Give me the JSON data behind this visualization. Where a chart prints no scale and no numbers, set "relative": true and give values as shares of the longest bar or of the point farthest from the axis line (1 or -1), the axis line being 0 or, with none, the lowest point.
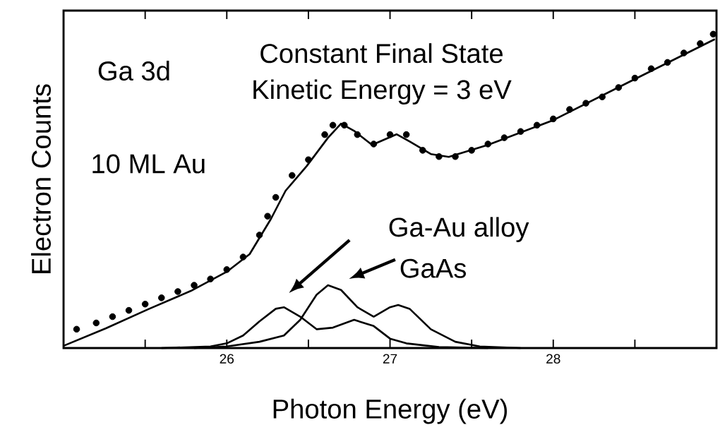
{
  "chart_data": {
    "type": "line",
    "xlabel": "Photon Energy (eV)",
    "ylabel": "Electron Counts",
    "relative": true,
    "xlim": [
      25,
      29
    ],
    "xticks": [
      {
        "value": 25.5,
        "label": null
      },
      26,
      {
        "value": 26.5,
        "label": null
      },
      27,
      {
        "value": 27.5,
        "label": null
      },
      28,
      {
        "value": 28.5,
        "label": null
      }
    ],
    "line_style": "solid",
    "annotations": [
      "Ga 3d",
      "Constant Final State",
      "Kinetic Energy = 3 eV",
      "10 ML Au",
      "Ga-Au alloy",
      "GaAs"
    ],
    "series": [
      {
        "type": "scatter",
        "marker": "circle",
        "color": "#000000",
        "x": [
          25.08,
          25.2,
          25.3,
          25.4,
          25.5,
          25.6,
          25.7,
          25.8,
          25.9,
          26.0,
          26.1,
          26.2,
          26.25,
          26.3,
          26.4,
          26.5,
          26.6,
          26.65,
          26.72,
          26.8,
          26.9,
          27.0,
          27.1,
          27.2,
          27.3,
          27.4,
          27.5,
          27.6,
          27.7,
          27.8,
          27.9,
          28.0,
          28.1,
          28.2,
          28.3,
          28.4,
          28.5,
          28.6,
          28.7,
          28.8,
          28.9,
          28.98
        ],
        "values": [
          0.06,
          0.08,
          0.1,
          0.12,
          0.14,
          0.16,
          0.18,
          0.2,
          0.22,
          0.25,
          0.29,
          0.36,
          0.42,
          0.48,
          0.55,
          0.6,
          0.68,
          0.71,
          0.71,
          0.68,
          0.65,
          0.68,
          0.68,
          0.63,
          0.61,
          0.61,
          0.63,
          0.65,
          0.67,
          0.69,
          0.71,
          0.73,
          0.76,
          0.78,
          0.8,
          0.83,
          0.86,
          0.89,
          0.91,
          0.94,
          0.97,
          1.0
        ]
      },
      {
        "marker": "none",
        "color": "#000000",
        "x": [
          25.0,
          25.26,
          25.52,
          25.78,
          26.0,
          26.14,
          26.27,
          26.36,
          26.49,
          26.62,
          26.7,
          26.78,
          26.89,
          27.04,
          27.12,
          27.25,
          27.36,
          27.6,
          28.0,
          28.47,
          28.99
        ],
        "values": [
          0.007,
          0.063,
          0.124,
          0.182,
          0.243,
          0.299,
          0.411,
          0.501,
          0.58,
          0.67,
          0.715,
          0.692,
          0.647,
          0.681,
          0.658,
          0.618,
          0.609,
          0.647,
          0.726,
          0.849,
          0.984
        ]
      },
      {
        "marker": "none",
        "color": "#000000",
        "x": [
          25.6,
          25.9,
          26.0,
          26.1,
          26.2,
          26.3,
          26.35,
          26.45,
          26.55,
          26.65,
          26.78,
          26.9,
          27.0,
          27.1,
          27.3,
          27.6
        ],
        "values": [
          0,
          0.005,
          0.015,
          0.04,
          0.085,
          0.125,
          0.13,
          0.1,
          0.06,
          0.065,
          0.09,
          0.07,
          0.03,
          0.015,
          0.003,
          0
        ]
      },
      {
        "marker": "none",
        "color": "#000000",
        "x": [
          25.8,
          26.0,
          26.2,
          26.35,
          26.45,
          26.55,
          26.62,
          26.7,
          26.8,
          26.9,
          27.0,
          27.05,
          27.12,
          27.25,
          27.4,
          27.55,
          27.8
        ],
        "values": [
          0,
          0.005,
          0.02,
          0.04,
          0.09,
          0.17,
          0.2,
          0.185,
          0.13,
          0.1,
          0.13,
          0.137,
          0.125,
          0.06,
          0.02,
          0.005,
          0
        ]
      }
    ]
  }
}
